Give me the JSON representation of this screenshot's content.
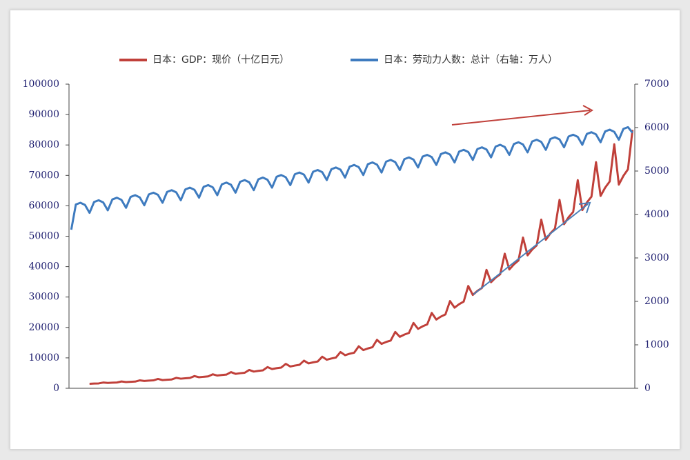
{
  "chart_data": {
    "type": "line",
    "categories": [
      null,
      null,
      null,
      null,
      null,
      null,
      null,
      null,
      null,
      null,
      null,
      null,
      null,
      null,
      null,
      null,
      null,
      null,
      null,
      null,
      null,
      null,
      null,
      null,
      null,
      null,
      null,
      null,
      null,
      null,
      null,
      null,
      null,
      null,
      null,
      null,
      null,
      null,
      null,
      null,
      null,
      null,
      null,
      null,
      null,
      null,
      null,
      null,
      null,
      null,
      null,
      null,
      null,
      null,
      null,
      null,
      null,
      null,
      null,
      null,
      null,
      null,
      null,
      null,
      null,
      null,
      null,
      null,
      null,
      null,
      null,
      null,
      null,
      null,
      null,
      null,
      null,
      null,
      null,
      null,
      null,
      null,
      null,
      null,
      null,
      null,
      null,
      null,
      null,
      null,
      null,
      null,
      null,
      null,
      null,
      null,
      null,
      null,
      null,
      null,
      null,
      null,
      null,
      null,
      null,
      null,
      null,
      null,
      null,
      null,
      null,
      null,
      null,
      null,
      null,
      null,
      null,
      null,
      null,
      null,
      null,
      null,
      null,
      null
    ],
    "series": [
      {
        "name": "日本：GDP：现价（十亿日元）",
        "color": "#c0403a",
        "values": [
          null,
          null,
          null,
          null,
          1488,
          1552,
          1600,
          1888,
          1767,
          1843,
          1900,
          2242,
          2046,
          2134,
          2200,
          2596,
          2418,
          2522,
          2600,
          3068,
          2697,
          2813,
          2900,
          3422,
          3162,
          3298,
          3400,
          4012,
          3627,
          3783,
          3900,
          4602,
          4185,
          4365,
          4500,
          5310,
          4743,
          4947,
          5100,
          6018,
          5487,
          5723,
          5900,
          6962,
          6324,
          6596,
          6800,
          8024,
          7161,
          7469,
          7700,
          9086,
          8184,
          8536,
          8800,
          10384,
          9393,
          9797,
          10100,
          11918,
          10881,
          11349,
          11700,
          13806,
          12555,
          13095,
          13500,
          15930,
          14601,
          15229,
          15700,
          18526,
          16926,
          17654,
          18200,
          21476,
          19530,
          20370,
          21000,
          24780,
          22599,
          23571,
          24300,
          28674,
          26505,
          27645,
          28500,
          33630,
          30690,
          32010,
          33000,
          38940,
          34875,
          36375,
          37500,
          44250,
          39060,
          40740,
          42000,
          49560,
          43710,
          45590,
          47000,
          55460,
          48825,
          50925,
          52500,
          61950,
          53940,
          56260,
          58000,
          68440,
          58590,
          61110,
          63000,
          74340,
          63240,
          65960,
          68000,
          80240,
          66960,
          69840,
          72000,
          84960
        ]
      },
      {
        "name": "日本：劳动力人数：总计（右轴：万人）",
        "color": "#3e7bbf",
        "axis": "y2",
        "values": [
          3650,
          4230,
          4270,
          4220,
          4038,
          4288,
          4328,
          4278,
          4096,
          4346,
          4386,
          4336,
          4154,
          4404,
          4444,
          4394,
          4212,
          4462,
          4502,
          4452,
          4270,
          4520,
          4560,
          4510,
          4328,
          4578,
          4618,
          4568,
          4386,
          4636,
          4676,
          4626,
          4444,
          4694,
          4734,
          4684,
          4502,
          4752,
          4792,
          4742,
          4560,
          4810,
          4850,
          4800,
          4618,
          4868,
          4908,
          4858,
          4676,
          4926,
          4966,
          4916,
          4734,
          4984,
          5024,
          4974,
          4792,
          5042,
          5082,
          5032,
          4850,
          5100,
          5140,
          5090,
          4908,
          5158,
          5198,
          5148,
          4966,
          5216,
          5256,
          5206,
          5024,
          5274,
          5314,
          5264,
          5082,
          5332,
          5372,
          5322,
          5140,
          5390,
          5430,
          5380,
          5198,
          5448,
          5488,
          5438,
          5256,
          5506,
          5546,
          5496,
          5314,
          5564,
          5604,
          5554,
          5372,
          5622,
          5662,
          5612,
          5430,
          5680,
          5720,
          5670,
          5488,
          5738,
          5778,
          5728,
          5546,
          5796,
          5836,
          5786,
          5604,
          5854,
          5894,
          5844,
          5662,
          5912,
          5952,
          5902,
          5720,
          5970,
          6010,
          5880
        ]
      }
    ],
    "ylim": [
      0,
      100000
    ],
    "yticks": [
      0,
      10000,
      20000,
      30000,
      40000,
      50000,
      60000,
      70000,
      80000,
      90000,
      100000
    ],
    "y2lim": [
      0,
      7000
    ],
    "y2ticks": [
      0,
      1000,
      2000,
      3000,
      4000,
      5000,
      6000,
      7000
    ],
    "grid": false,
    "legend": "top"
  }
}
